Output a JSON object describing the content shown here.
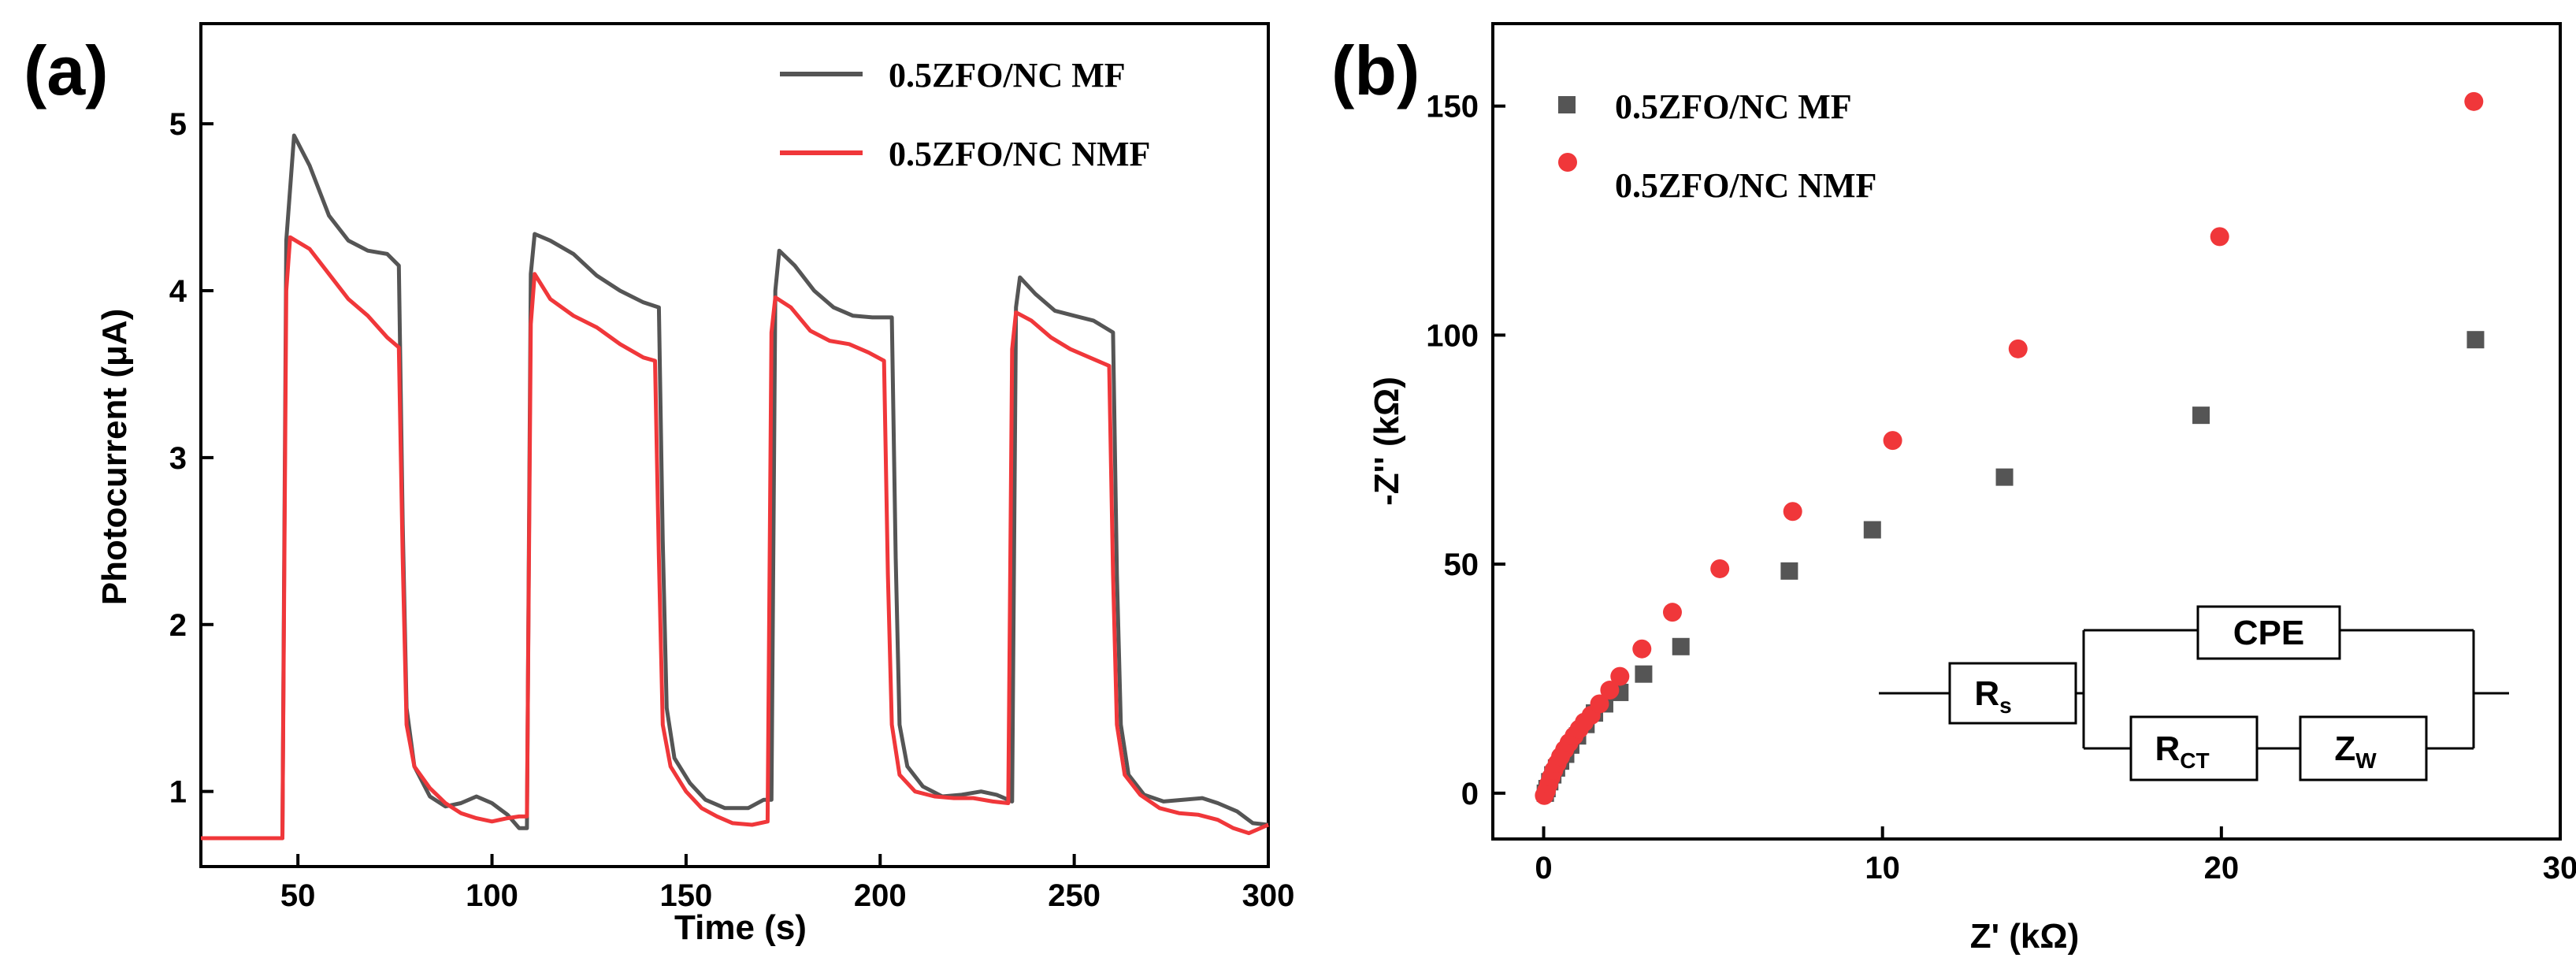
{
  "colors": {
    "mf": "#555555",
    "nmf": "#f0373a",
    "axis": "#000000"
  },
  "chart_data": [
    {
      "panel_label": "(a)",
      "type": "line",
      "xlabel": "Time (s)",
      "ylabel": "Photocurrent (μA)",
      "xlim": [
        25,
        300
      ],
      "ylim": [
        0.55,
        5.6
      ],
      "xticks": [
        50,
        100,
        150,
        200,
        250,
        300
      ],
      "yticks": [
        1,
        2,
        3,
        4,
        5
      ],
      "legend_position": "top-right",
      "series": [
        {
          "name": "0.5ZFO/NC MF",
          "color": "#555555",
          "points": [
            [
              25,
              0.72
            ],
            [
              46,
              0.72
            ],
            [
              47,
              4.3
            ],
            [
              49,
              4.93
            ],
            [
              53,
              4.75
            ],
            [
              58,
              4.45
            ],
            [
              63,
              4.3
            ],
            [
              68,
              4.24
            ],
            [
              73,
              4.22
            ],
            [
              76,
              4.15
            ],
            [
              77,
              2.6
            ],
            [
              78,
              1.5
            ],
            [
              80,
              1.15
            ],
            [
              84,
              0.97
            ],
            [
              88,
              0.91
            ],
            [
              92,
              0.93
            ],
            [
              96,
              0.97
            ],
            [
              100,
              0.93
            ],
            [
              104,
              0.86
            ],
            [
              107,
              0.78
            ],
            [
              109,
              0.78
            ],
            [
              110,
              4.1
            ],
            [
              111,
              4.34
            ],
            [
              115,
              4.3
            ],
            [
              121,
              4.22
            ],
            [
              127,
              4.09
            ],
            [
              133,
              4.0
            ],
            [
              139,
              3.93
            ],
            [
              143,
              3.9
            ],
            [
              144,
              2.5
            ],
            [
              145,
              1.5
            ],
            [
              147,
              1.2
            ],
            [
              151,
              1.05
            ],
            [
              155,
              0.95
            ],
            [
              160,
              0.9
            ],
            [
              166,
              0.9
            ],
            [
              170,
              0.95
            ],
            [
              172,
              0.95
            ],
            [
              173,
              4.0
            ],
            [
              174,
              4.24
            ],
            [
              178,
              4.15
            ],
            [
              183,
              4.0
            ],
            [
              188,
              3.9
            ],
            [
              193,
              3.85
            ],
            [
              198,
              3.84
            ],
            [
              203,
              3.84
            ],
            [
              204,
              2.4
            ],
            [
              205,
              1.4
            ],
            [
              207,
              1.15
            ],
            [
              211,
              1.03
            ],
            [
              216,
              0.97
            ],
            [
              221,
              0.98
            ],
            [
              226,
              1.0
            ],
            [
              230,
              0.98
            ],
            [
              234,
              0.94
            ],
            [
              235,
              3.9
            ],
            [
              236,
              4.08
            ],
            [
              240,
              3.98
            ],
            [
              245,
              3.88
            ],
            [
              250,
              3.85
            ],
            [
              255,
              3.82
            ],
            [
              260,
              3.75
            ],
            [
              261,
              2.3
            ],
            [
              262,
              1.4
            ],
            [
              264,
              1.1
            ],
            [
              268,
              0.98
            ],
            [
              273,
              0.94
            ],
            [
              278,
              0.95
            ],
            [
              283,
              0.96
            ],
            [
              287,
              0.93
            ],
            [
              292,
              0.88
            ],
            [
              296,
              0.81
            ],
            [
              300,
              0.8
            ]
          ]
        },
        {
          "name": "0.5ZFO/NC NMF",
          "color": "#f0373a",
          "points": [
            [
              25,
              0.72
            ],
            [
              46,
              0.72
            ],
            [
              47,
              4.0
            ],
            [
              48,
              4.32
            ],
            [
              53,
              4.25
            ],
            [
              58,
              4.1
            ],
            [
              63,
              3.95
            ],
            [
              68,
              3.85
            ],
            [
              73,
              3.72
            ],
            [
              76,
              3.66
            ],
            [
              77,
              2.4
            ],
            [
              78,
              1.4
            ],
            [
              80,
              1.15
            ],
            [
              84,
              1.02
            ],
            [
              88,
              0.93
            ],
            [
              92,
              0.87
            ],
            [
              96,
              0.84
            ],
            [
              100,
              0.82
            ],
            [
              104,
              0.84
            ],
            [
              107,
              0.85
            ],
            [
              109,
              0.85
            ],
            [
              110,
              3.8
            ],
            [
              111,
              4.1
            ],
            [
              115,
              3.95
            ],
            [
              121,
              3.85
            ],
            [
              127,
              3.78
            ],
            [
              133,
              3.68
            ],
            [
              139,
              3.6
            ],
            [
              142,
              3.58
            ],
            [
              143,
              2.4
            ],
            [
              144,
              1.4
            ],
            [
              146,
              1.15
            ],
            [
              150,
              1.0
            ],
            [
              154,
              0.9
            ],
            [
              158,
              0.85
            ],
            [
              162,
              0.81
            ],
            [
              167,
              0.8
            ],
            [
              171,
              0.82
            ],
            [
              172,
              3.75
            ],
            [
              173,
              3.96
            ],
            [
              177,
              3.9
            ],
            [
              182,
              3.76
            ],
            [
              187,
              3.7
            ],
            [
              192,
              3.68
            ],
            [
              197,
              3.63
            ],
            [
              201,
              3.58
            ],
            [
              202,
              2.3
            ],
            [
              203,
              1.4
            ],
            [
              205,
              1.1
            ],
            [
              209,
              1.0
            ],
            [
              214,
              0.97
            ],
            [
              219,
              0.96
            ],
            [
              224,
              0.96
            ],
            [
              229,
              0.94
            ],
            [
              233,
              0.93
            ],
            [
              234,
              3.65
            ],
            [
              235,
              3.87
            ],
            [
              239,
              3.82
            ],
            [
              244,
              3.72
            ],
            [
              249,
              3.65
            ],
            [
              254,
              3.6
            ],
            [
              259,
              3.55
            ],
            [
              260,
              2.3
            ],
            [
              261,
              1.4
            ],
            [
              263,
              1.1
            ],
            [
              267,
              0.98
            ],
            [
              272,
              0.9
            ],
            [
              277,
              0.87
            ],
            [
              282,
              0.86
            ],
            [
              287,
              0.83
            ],
            [
              291,
              0.78
            ],
            [
              295,
              0.75
            ],
            [
              300,
              0.8
            ]
          ]
        }
      ]
    },
    {
      "panel_label": "(b)",
      "type": "scatter",
      "xlabel": "Z' (kΩ)",
      "ylabel": "-Z'' (kΩ)",
      "xlim": [
        -1.5,
        30
      ],
      "ylim": [
        -10,
        168
      ],
      "xticks": [
        0,
        10,
        20,
        30
      ],
      "yticks": [
        0,
        50,
        100,
        150
      ],
      "legend_position": "top-left",
      "series": [
        {
          "name": "0.5ZFO/NC MF",
          "color": "#555555",
          "marker": "square",
          "points": [
            [
              0.05,
              0.0
            ],
            [
              0.1,
              1.0
            ],
            [
              0.18,
              2.5
            ],
            [
              0.27,
              4.0
            ],
            [
              0.38,
              5.5
            ],
            [
              0.5,
              7.0
            ],
            [
              0.65,
              8.5
            ],
            [
              0.8,
              10.5
            ],
            [
              1.0,
              12.5
            ],
            [
              1.25,
              15.0
            ],
            [
              1.5,
              17.5
            ],
            [
              1.8,
              19.5
            ],
            [
              2.25,
              22.0
            ],
            [
              2.95,
              26.0
            ],
            [
              4.05,
              32.0
            ],
            [
              7.25,
              48.5
            ],
            [
              9.7,
              57.5
            ],
            [
              13.6,
              69.0
            ],
            [
              19.4,
              82.5
            ],
            [
              27.5,
              99.0
            ]
          ]
        },
        {
          "name": "0.5ZFO/NC NMF",
          "color": "#f0373a",
          "marker": "circle",
          "points": [
            [
              0.02,
              -0.5
            ],
            [
              0.08,
              0.5
            ],
            [
              0.15,
              2.0
            ],
            [
              0.22,
              3.5
            ],
            [
              0.3,
              5.0
            ],
            [
              0.4,
              6.5
            ],
            [
              0.5,
              8.0
            ],
            [
              0.62,
              9.5
            ],
            [
              0.75,
              11.0
            ],
            [
              0.9,
              12.5
            ],
            [
              1.05,
              14.0
            ],
            [
              1.2,
              15.5
            ],
            [
              1.4,
              17.0
            ],
            [
              1.65,
              19.5
            ],
            [
              1.95,
              22.5
            ],
            [
              2.25,
              25.5
            ],
            [
              2.9,
              31.5
            ],
            [
              3.8,
              39.5
            ],
            [
              5.2,
              49.0
            ],
            [
              7.35,
              61.5
            ],
            [
              10.3,
              77.0
            ],
            [
              14.0,
              97.0
            ],
            [
              19.95,
              121.5
            ],
            [
              27.45,
              151.0
            ]
          ]
        }
      ],
      "inset_circuit": {
        "rs": "R",
        "rs_sub": "s",
        "cpe": "CPE",
        "rct": "R",
        "rct_sub": "CT",
        "zw": "Z",
        "zw_sub": "W"
      }
    }
  ]
}
